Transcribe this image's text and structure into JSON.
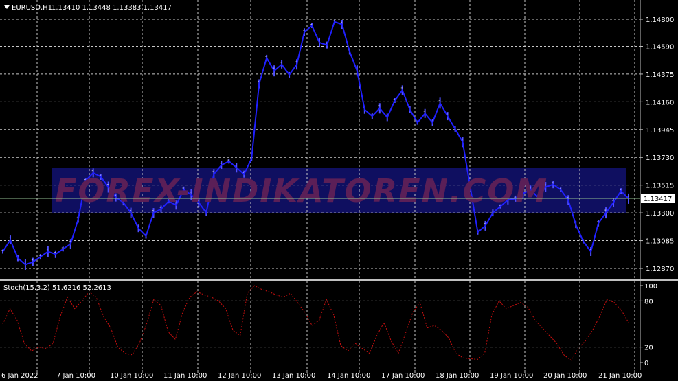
{
  "header": {
    "symbol": "EURUSD,H1",
    "ohlc": "1.13410 1.13448 1.13383 1.13417"
  },
  "indicator_header": {
    "text": "Stoch(15,3,2) 51.6216 52.2613"
  },
  "watermark": "FOREX-INDIKATOREN.COM",
  "colors": {
    "background": "#000000",
    "grid": "#c8c8c8",
    "price_bars": "#2020ff",
    "price_wicks": "#5050ff",
    "stoch_line": "#cc1010",
    "current_price_line": "#8fbc8f",
    "watermark_band": "#0f0f60",
    "watermark_text": "#5b1f57",
    "separator": "#c0c0c0"
  },
  "chart_data": [
    {
      "type": "line",
      "title": "",
      "series": [
        {
          "name": "EURUSD,H1",
          "y": [
            1.13,
            1.1309,
            1.1295,
            1.129,
            1.1292,
            1.1296,
            1.13,
            1.1298,
            1.1302,
            1.1306,
            1.1325,
            1.1355,
            1.1361,
            1.1358,
            1.135,
            1.1342,
            1.1338,
            1.133,
            1.1318,
            1.1312,
            1.133,
            1.1333,
            1.1339,
            1.1336,
            1.1348,
            1.1344,
            1.1338,
            1.133,
            1.136,
            1.1367,
            1.137,
            1.1365,
            1.136,
            1.1372,
            1.143,
            1.145,
            1.144,
            1.1445,
            1.1437,
            1.1445,
            1.147,
            1.1475,
            1.1462,
            1.146,
            1.1478,
            1.1476,
            1.1455,
            1.144,
            1.141,
            1.1405,
            1.1411,
            1.1404,
            1.1417,
            1.1425,
            1.141,
            1.14,
            1.1407,
            1.14,
            1.1415,
            1.1405,
            1.1395,
            1.1385,
            1.135,
            1.1315,
            1.132,
            1.133,
            1.1335,
            1.134,
            1.1341,
            1.1345,
            1.1348,
            1.1342,
            1.135,
            1.1352,
            1.1348,
            1.134,
            1.1321,
            1.1308,
            1.13,
            1.1322,
            1.133,
            1.1338,
            1.1347,
            1.1341
          ]
        }
      ],
      "x_labels": [
        "6 Jan 2022",
        "7 Jan 10:00",
        "10 Jan 10:00",
        "11 Jan 10:00",
        "12 Jan 10:00",
        "13 Jan 10:00",
        "14 Jan 10:00",
        "17 Jan 10:00",
        "18 Jan 10:00",
        "19 Jan 10:00",
        "20 Jan 10:00",
        "21 Jan 10:00"
      ],
      "y_ticks": [
        "1.14800",
        "1.14590",
        "1.14375",
        "1.14160",
        "1.13945",
        "1.13730",
        "1.13515",
        "1.13300",
        "1.13085",
        "1.12870"
      ],
      "current_price": "1.13417",
      "ylim": [
        1.1283,
        1.1486
      ],
      "grid": true
    },
    {
      "type": "line",
      "title": "Stoch(15,3,2) 51.6216 52.2613",
      "series": [
        {
          "name": "Stoch(15,3,2)",
          "y": [
            50,
            70,
            55,
            25,
            15,
            20,
            18,
            25,
            60,
            85,
            70,
            80,
            92,
            85,
            60,
            45,
            20,
            12,
            10,
            25,
            50,
            82,
            74,
            40,
            30,
            65,
            85,
            92,
            88,
            85,
            80,
            70,
            42,
            35,
            90,
            100,
            95,
            92,
            88,
            85,
            90,
            78,
            65,
            48,
            55,
            82,
            62,
            22,
            15,
            25,
            18,
            12,
            35,
            52,
            28,
            12,
            38,
            65,
            78,
            45,
            48,
            42,
            32,
            12,
            6,
            5,
            4,
            12,
            62,
            80,
            70,
            74,
            78,
            72,
            55,
            45,
            35,
            25,
            10,
            3,
            18,
            28,
            42,
            60,
            82,
            78,
            68,
            52
          ]
        }
      ],
      "ylim": [
        0,
        100
      ],
      "y_ticks": [
        "100",
        "80",
        "20",
        "0"
      ],
      "grid": true
    }
  ]
}
